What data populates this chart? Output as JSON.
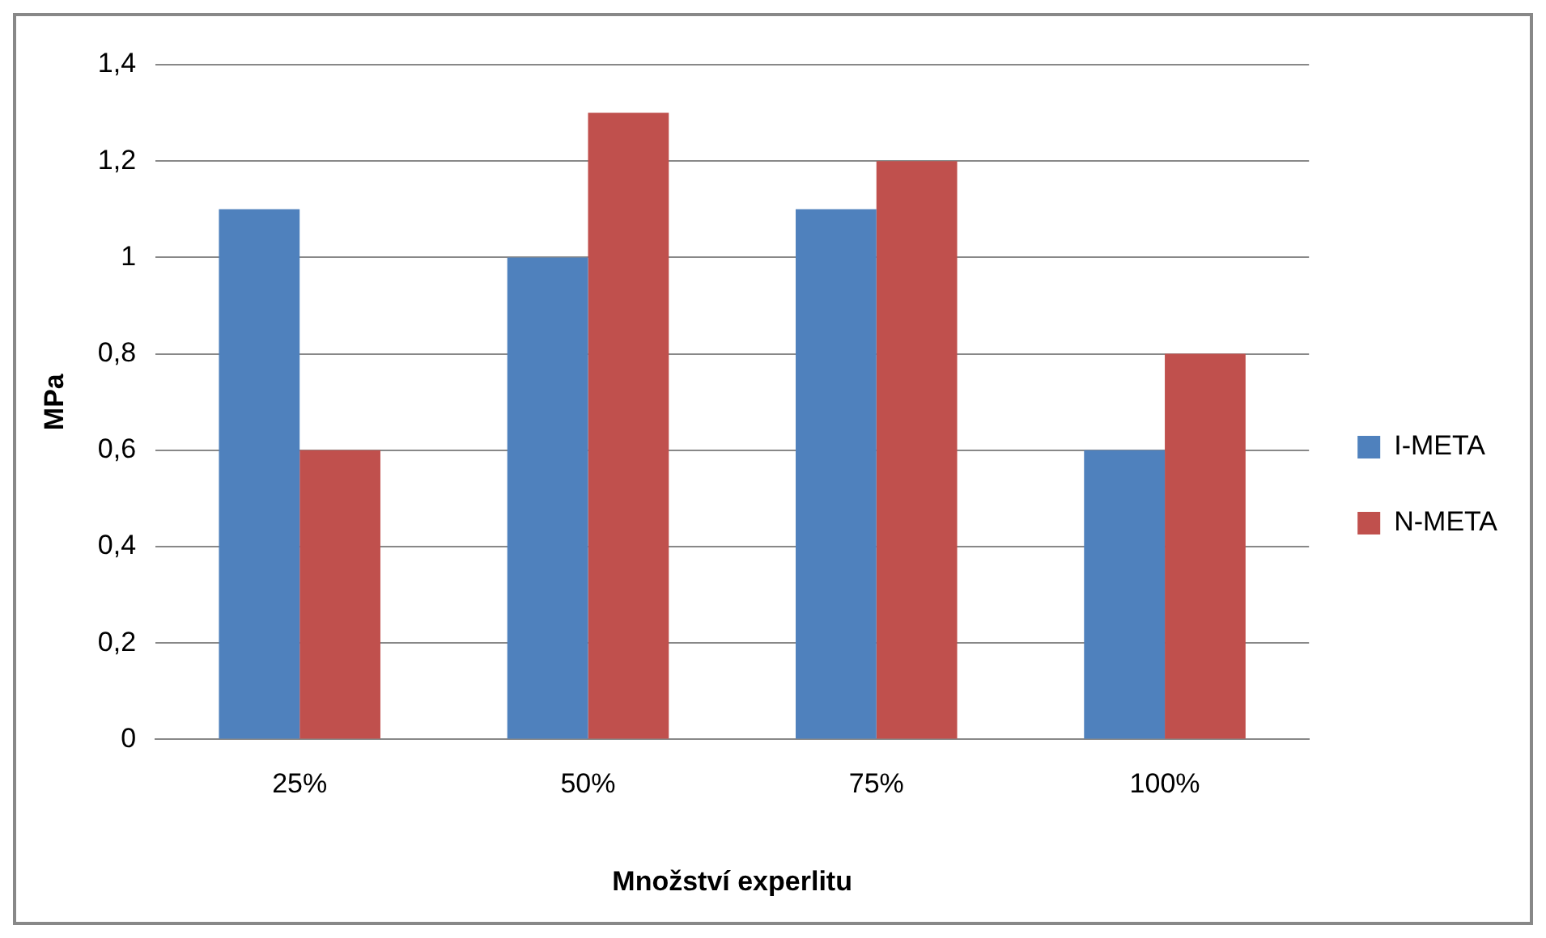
{
  "chart_data": {
    "type": "bar",
    "xlabel": "Množství experlitu",
    "ylabel": "MPa",
    "categories": [
      "25%",
      "50%",
      "75%",
      "100%"
    ],
    "series": [
      {
        "name": "I-META",
        "color": "#4f81bd",
        "values": [
          1.1,
          1.0,
          1.1,
          0.6
        ]
      },
      {
        "name": "N-META",
        "color": "#c0504d",
        "values": [
          0.6,
          1.3,
          1.2,
          0.8
        ]
      }
    ],
    "ylim": [
      0,
      1.4
    ],
    "yticks": [
      0,
      {
        "value": 0.2,
        "label": "0,2"
      },
      {
        "value": 0.4,
        "label": "0,4"
      },
      {
        "value": 0.6,
        "label": "0,6"
      },
      {
        "value": 0.8,
        "label": "0,8"
      },
      1,
      {
        "value": 1.2,
        "label": "1,2"
      },
      {
        "value": 1.4,
        "label": "1,4"
      }
    ],
    "grid": "y",
    "legend": "right"
  }
}
